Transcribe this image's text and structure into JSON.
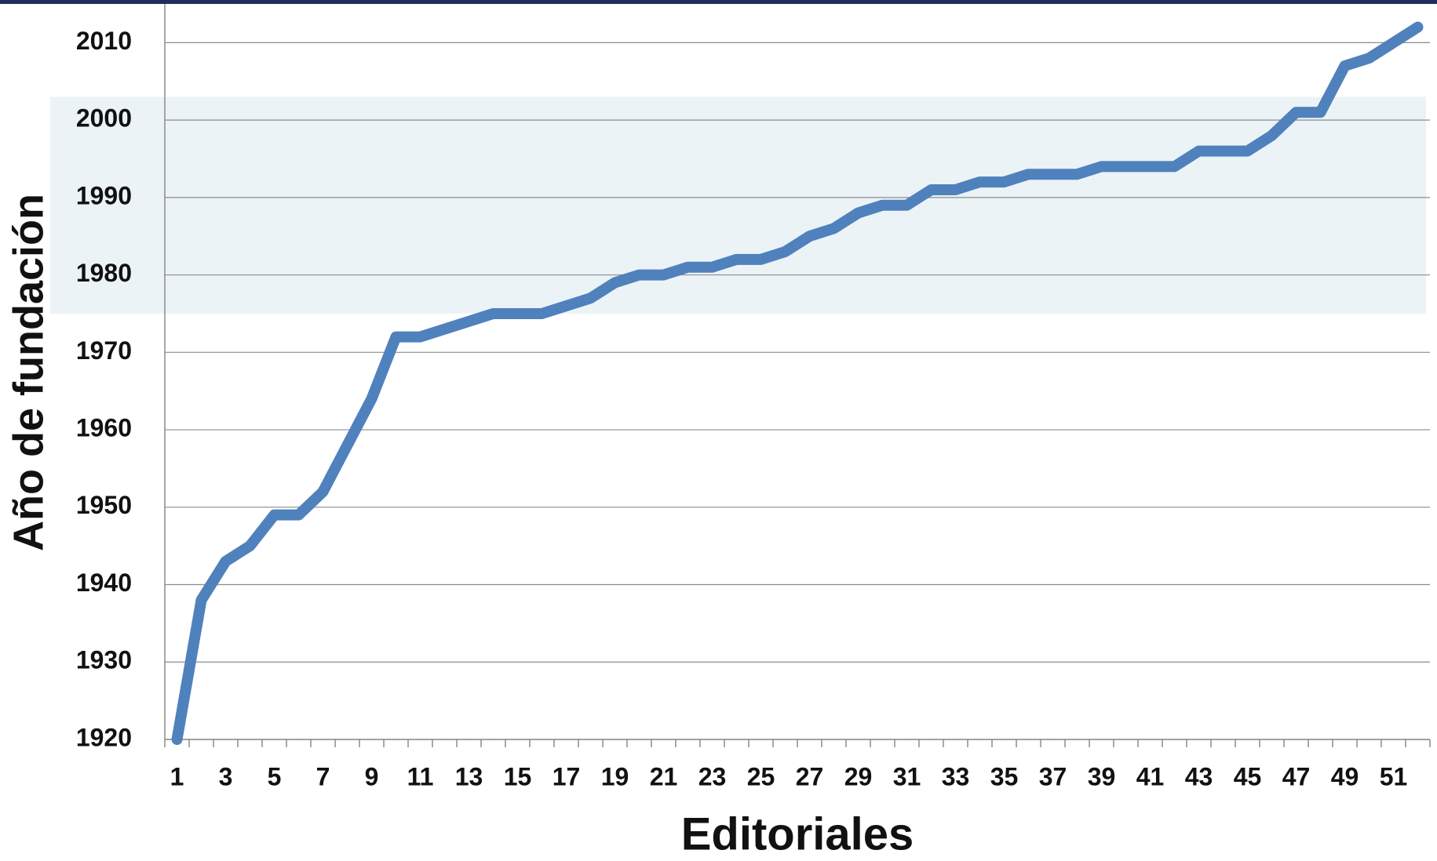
{
  "chart_data": {
    "type": "line",
    "x_label": "Editoriales",
    "y_label": "Año de fundación",
    "categories": [
      1,
      null,
      3,
      null,
      5,
      null,
      7,
      null,
      9,
      null,
      11,
      null,
      13,
      null,
      15,
      null,
      17,
      null,
      19,
      null,
      21,
      null,
      23,
      null,
      25,
      null,
      27,
      null,
      29,
      null,
      31,
      null,
      33,
      null,
      35,
      null,
      37,
      null,
      39,
      null,
      41,
      null,
      43,
      null,
      45,
      null,
      47,
      null,
      49,
      null,
      51,
      null
    ],
    "series": [
      {
        "color": "#4f81bd",
        "values": [
          1920,
          1938,
          1943,
          1945,
          1949,
          1949,
          1952,
          1958,
          1964,
          1972,
          1972,
          1973,
          1974,
          1975,
          1975,
          1975,
          1976,
          1977,
          1979,
          1980,
          1980,
          1981,
          1981,
          1982,
          1982,
          1983,
          1985,
          1986,
          1988,
          1989,
          1989,
          1991,
          1991,
          1992,
          1992,
          1993,
          1993,
          1993,
          1994,
          1994,
          1994,
          1994,
          1996,
          1996,
          1996,
          1998,
          2001,
          2001,
          2007,
          2008,
          2010,
          2012
        ]
      }
    ],
    "ylim": [
      1920,
      2015
    ],
    "yticks": [
      1920,
      1930,
      1940,
      1950,
      1960,
      1970,
      1980,
      1990,
      2000,
      2010
    ],
    "grid": true,
    "highlight_range": [
      1975,
      2003
    ],
    "highlight_color": "#dbe9ee"
  }
}
